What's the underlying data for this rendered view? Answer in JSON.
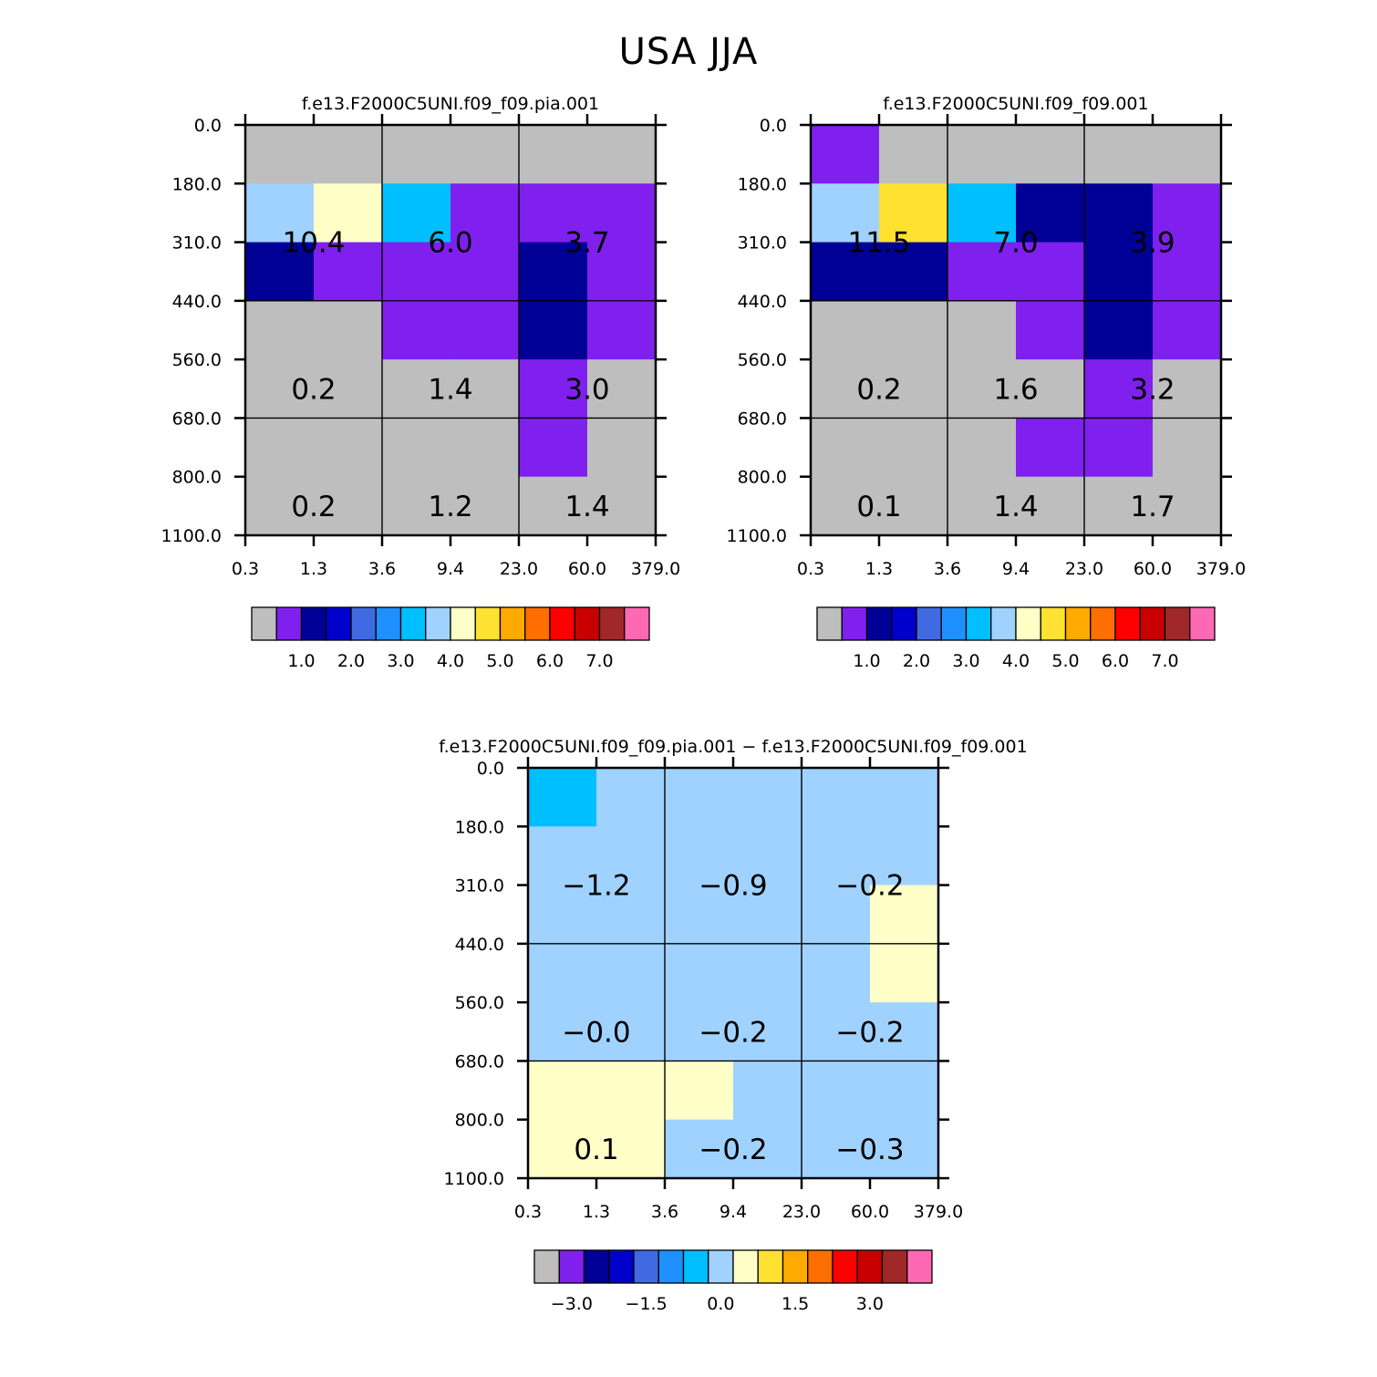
{
  "figure_title": "USA JJA",
  "colormap": [
    "#bebebe",
    "#8020ef",
    "#000096",
    "#0000cd",
    "#4169e1",
    "#1e90ff",
    "#00bfff",
    "#a0d2ff",
    "#ffffc8",
    "#ffe132",
    "#ffaa00",
    "#ff6e00",
    "#ff0000",
    "#c80000",
    "#a02828",
    "#ff69b4"
  ],
  "chart_data": [
    {
      "type": "heatmap",
      "title": "f.e13.F2000C5UNI.f09_f09.pia.001",
      "xlabel": "",
      "ylabel": "",
      "x_tick_labels": [
        "0.3",
        "1.3",
        "3.6",
        "9.4",
        "23.0",
        "60.0",
        "379.0"
      ],
      "y_tick_labels": [
        "0.0",
        "180.0",
        "310.0",
        "440.0",
        "560.0",
        "680.0",
        "800.0",
        "1100.0"
      ],
      "cell_color_index": [
        [
          0,
          0,
          0,
          0,
          0,
          0
        ],
        [
          7,
          8,
          6,
          1,
          1,
          1
        ],
        [
          2,
          1,
          1,
          1,
          2,
          1
        ],
        [
          0,
          0,
          1,
          1,
          2,
          1
        ],
        [
          0,
          0,
          0,
          0,
          1,
          0
        ],
        [
          0,
          0,
          0,
          0,
          1,
          0
        ],
        [
          0,
          0,
          0,
          0,
          0,
          0
        ]
      ],
      "gridlines_x": [
        3.6,
        23.0
      ],
      "gridlines_y": [
        440.0,
        680.0
      ],
      "annotations": [
        {
          "col": 0,
          "row": 1.5,
          "text": "10.4"
        },
        {
          "col": 2,
          "row": 1.5,
          "text": "6.0"
        },
        {
          "col": 4,
          "row": 1.5,
          "text": "3.7"
        },
        {
          "col": 0,
          "row": 4,
          "text": "0.2"
        },
        {
          "col": 2,
          "row": 4,
          "text": "1.4"
        },
        {
          "col": 4,
          "row": 4,
          "text": "3.0"
        },
        {
          "col": 0,
          "row": 6,
          "text": "0.2"
        },
        {
          "col": 2,
          "row": 6,
          "text": "1.2"
        },
        {
          "col": 4,
          "row": 6,
          "text": "1.4"
        }
      ],
      "colorbar_labels": [
        "1.0",
        "2.0",
        "3.0",
        "4.0",
        "5.0",
        "6.0",
        "7.0"
      ]
    },
    {
      "type": "heatmap",
      "title": "f.e13.F2000C5UNI.f09_f09.001",
      "xlabel": "",
      "ylabel": "",
      "x_tick_labels": [
        "0.3",
        "1.3",
        "3.6",
        "9.4",
        "23.0",
        "60.0",
        "379.0"
      ],
      "y_tick_labels": [
        "0.0",
        "180.0",
        "310.0",
        "440.0",
        "560.0",
        "680.0",
        "800.0",
        "1100.0"
      ],
      "cell_color_index": [
        [
          1,
          0,
          0,
          0,
          0,
          0
        ],
        [
          7,
          9,
          6,
          2,
          2,
          1
        ],
        [
          2,
          2,
          1,
          1,
          2,
          1
        ],
        [
          0,
          0,
          0,
          1,
          2,
          1
        ],
        [
          0,
          0,
          0,
          0,
          1,
          0
        ],
        [
          0,
          0,
          0,
          1,
          1,
          0
        ],
        [
          0,
          0,
          0,
          0,
          0,
          0
        ]
      ],
      "gridlines_x": [
        3.6,
        23.0
      ],
      "gridlines_y": [
        440.0,
        680.0
      ],
      "annotations": [
        {
          "col": 0,
          "row": 1.5,
          "text": "11.5"
        },
        {
          "col": 2,
          "row": 1.5,
          "text": "7.0"
        },
        {
          "col": 4,
          "row": 1.5,
          "text": "3.9"
        },
        {
          "col": 0,
          "row": 4,
          "text": "0.2"
        },
        {
          "col": 2,
          "row": 4,
          "text": "1.6"
        },
        {
          "col": 4,
          "row": 4,
          "text": "3.2"
        },
        {
          "col": 0,
          "row": 6,
          "text": "0.1"
        },
        {
          "col": 2,
          "row": 6,
          "text": "1.4"
        },
        {
          "col": 4,
          "row": 6,
          "text": "1.7"
        }
      ],
      "colorbar_labels": [
        "1.0",
        "2.0",
        "3.0",
        "4.0",
        "5.0",
        "6.0",
        "7.0"
      ]
    },
    {
      "type": "heatmap",
      "title": "f.e13.F2000C5UNI.f09_f09.pia.001 − f.e13.F2000C5UNI.f09_f09.001",
      "xlabel": "",
      "ylabel": "",
      "x_tick_labels": [
        "0.3",
        "1.3",
        "3.6",
        "9.4",
        "23.0",
        "60.0",
        "379.0"
      ],
      "y_tick_labels": [
        "0.0",
        "180.0",
        "310.0",
        "440.0",
        "560.0",
        "680.0",
        "800.0",
        "1100.0"
      ],
      "cell_color_index": [
        [
          6,
          7,
          7,
          7,
          7,
          7
        ],
        [
          7,
          7,
          7,
          7,
          7,
          7
        ],
        [
          7,
          7,
          7,
          7,
          7,
          8
        ],
        [
          7,
          7,
          7,
          7,
          7,
          8
        ],
        [
          7,
          7,
          7,
          7,
          7,
          7
        ],
        [
          8,
          8,
          8,
          7,
          7,
          7
        ],
        [
          8,
          8,
          7,
          7,
          7,
          7
        ]
      ],
      "gridlines_x": [
        3.6,
        23.0
      ],
      "gridlines_y": [
        440.0,
        680.0
      ],
      "annotations": [
        {
          "col": 0,
          "row": 1.5,
          "text": "−1.2"
        },
        {
          "col": 2,
          "row": 1.5,
          "text": "−0.9"
        },
        {
          "col": 4,
          "row": 1.5,
          "text": "−0.2"
        },
        {
          "col": 0,
          "row": 4,
          "text": "−0.0"
        },
        {
          "col": 2,
          "row": 4,
          "text": "−0.2"
        },
        {
          "col": 4,
          "row": 4,
          "text": "−0.2"
        },
        {
          "col": 0,
          "row": 6,
          "text": "0.1"
        },
        {
          "col": 2,
          "row": 6,
          "text": "−0.2"
        },
        {
          "col": 4,
          "row": 6,
          "text": "−0.3"
        }
      ],
      "colorbar_labels": [
        "−3.0",
        "−1.5",
        "0.0",
        "1.5",
        "3.0"
      ],
      "colorbar_label_positions": [
        1.5,
        4.5,
        7.5,
        10.5,
        13.5
      ]
    }
  ]
}
